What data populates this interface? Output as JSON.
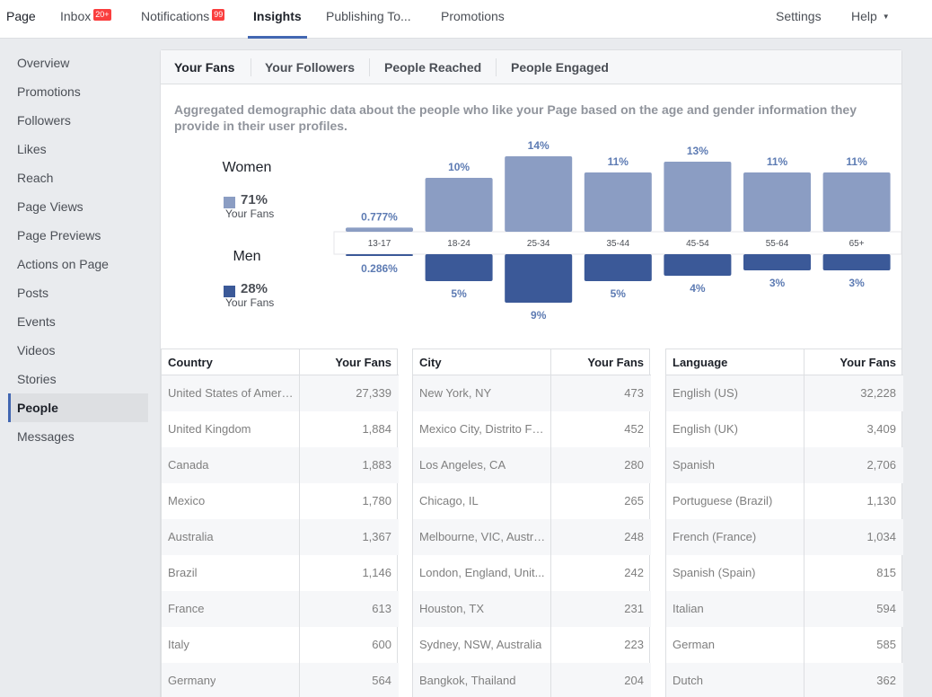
{
  "nav": {
    "items": [
      {
        "label": "Page",
        "x": 7
      },
      {
        "label": "Inbox",
        "badge": "20+",
        "x": 67
      },
      {
        "label": "Notifications",
        "badge": "99",
        "x": 157
      },
      {
        "label": "Insights",
        "active": true,
        "x": 282
      },
      {
        "label": "Publishing To...",
        "x": 363
      },
      {
        "label": "Promotions",
        "x": 491
      }
    ],
    "settings_label": "Settings",
    "help_label": "Help"
  },
  "sidebar": {
    "items": [
      "Overview",
      "Promotions",
      "Followers",
      "Likes",
      "Reach",
      "Page Views",
      "Page Previews",
      "Actions on Page",
      "Posts",
      "Events",
      "Videos",
      "Stories",
      "People",
      "Messages"
    ],
    "active_index": 12
  },
  "tabs": [
    "Your Fans",
    "Your Followers",
    "People Reached",
    "People Engaged"
  ],
  "description": "Aggregated demographic data about the people who like your Page based on the age and gender information they provide in their user profiles.",
  "legend": {
    "women": {
      "title": "Women",
      "pct": "71%",
      "sub": "Your Fans",
      "color": "#8b9dc3"
    },
    "men": {
      "title": "Men",
      "pct": "28%",
      "sub": "Your Fans",
      "color": "#3b5998"
    }
  },
  "chart_data": {
    "type": "bar",
    "categories": [
      "13-17",
      "18-24",
      "25-34",
      "35-44",
      "45-54",
      "55-64",
      "65+"
    ],
    "series": [
      {
        "name": "Women",
        "values": [
          0.777,
          10,
          14,
          11,
          13,
          11,
          11
        ],
        "labels": [
          "0.777%",
          "10%",
          "14%",
          "11%",
          "13%",
          "11%",
          "11%"
        ]
      },
      {
        "name": "Men",
        "values": [
          0.286,
          5,
          9,
          5,
          4,
          3,
          3
        ],
        "labels": [
          "0.286%",
          "5%",
          "9%",
          "5%",
          "4%",
          "3%",
          "3%"
        ]
      }
    ]
  },
  "tables": [
    {
      "col1": "Country",
      "col2": "Your Fans",
      "rows": [
        [
          "United States of America",
          "27,339"
        ],
        [
          "United Kingdom",
          "1,884"
        ],
        [
          "Canada",
          "1,883"
        ],
        [
          "Mexico",
          "1,780"
        ],
        [
          "Australia",
          "1,367"
        ],
        [
          "Brazil",
          "1,146"
        ],
        [
          "France",
          "613"
        ],
        [
          "Italy",
          "600"
        ],
        [
          "Germany",
          "564"
        ]
      ]
    },
    {
      "col1": "City",
      "col2": "Your Fans",
      "rows": [
        [
          "New York, NY",
          "473"
        ],
        [
          "Mexico City, Distrito Fe...",
          "452"
        ],
        [
          "Los Angeles, CA",
          "280"
        ],
        [
          "Chicago, IL",
          "265"
        ],
        [
          "Melbourne, VIC, Australia",
          "248"
        ],
        [
          "London, England, Unit...",
          "242"
        ],
        [
          "Houston, TX",
          "231"
        ],
        [
          "Sydney, NSW, Australia",
          "223"
        ],
        [
          "Bangkok, Thailand",
          "204"
        ]
      ]
    },
    {
      "col1": "Language",
      "col2": "Your Fans",
      "rows": [
        [
          "English (US)",
          "32,228"
        ],
        [
          "English (UK)",
          "3,409"
        ],
        [
          "Spanish",
          "2,706"
        ],
        [
          "Portuguese (Brazil)",
          "1,130"
        ],
        [
          "French (France)",
          "1,034"
        ],
        [
          "Spanish (Spain)",
          "815"
        ],
        [
          "Italian",
          "594"
        ],
        [
          "German",
          "585"
        ],
        [
          "Dutch",
          "362"
        ]
      ]
    }
  ]
}
